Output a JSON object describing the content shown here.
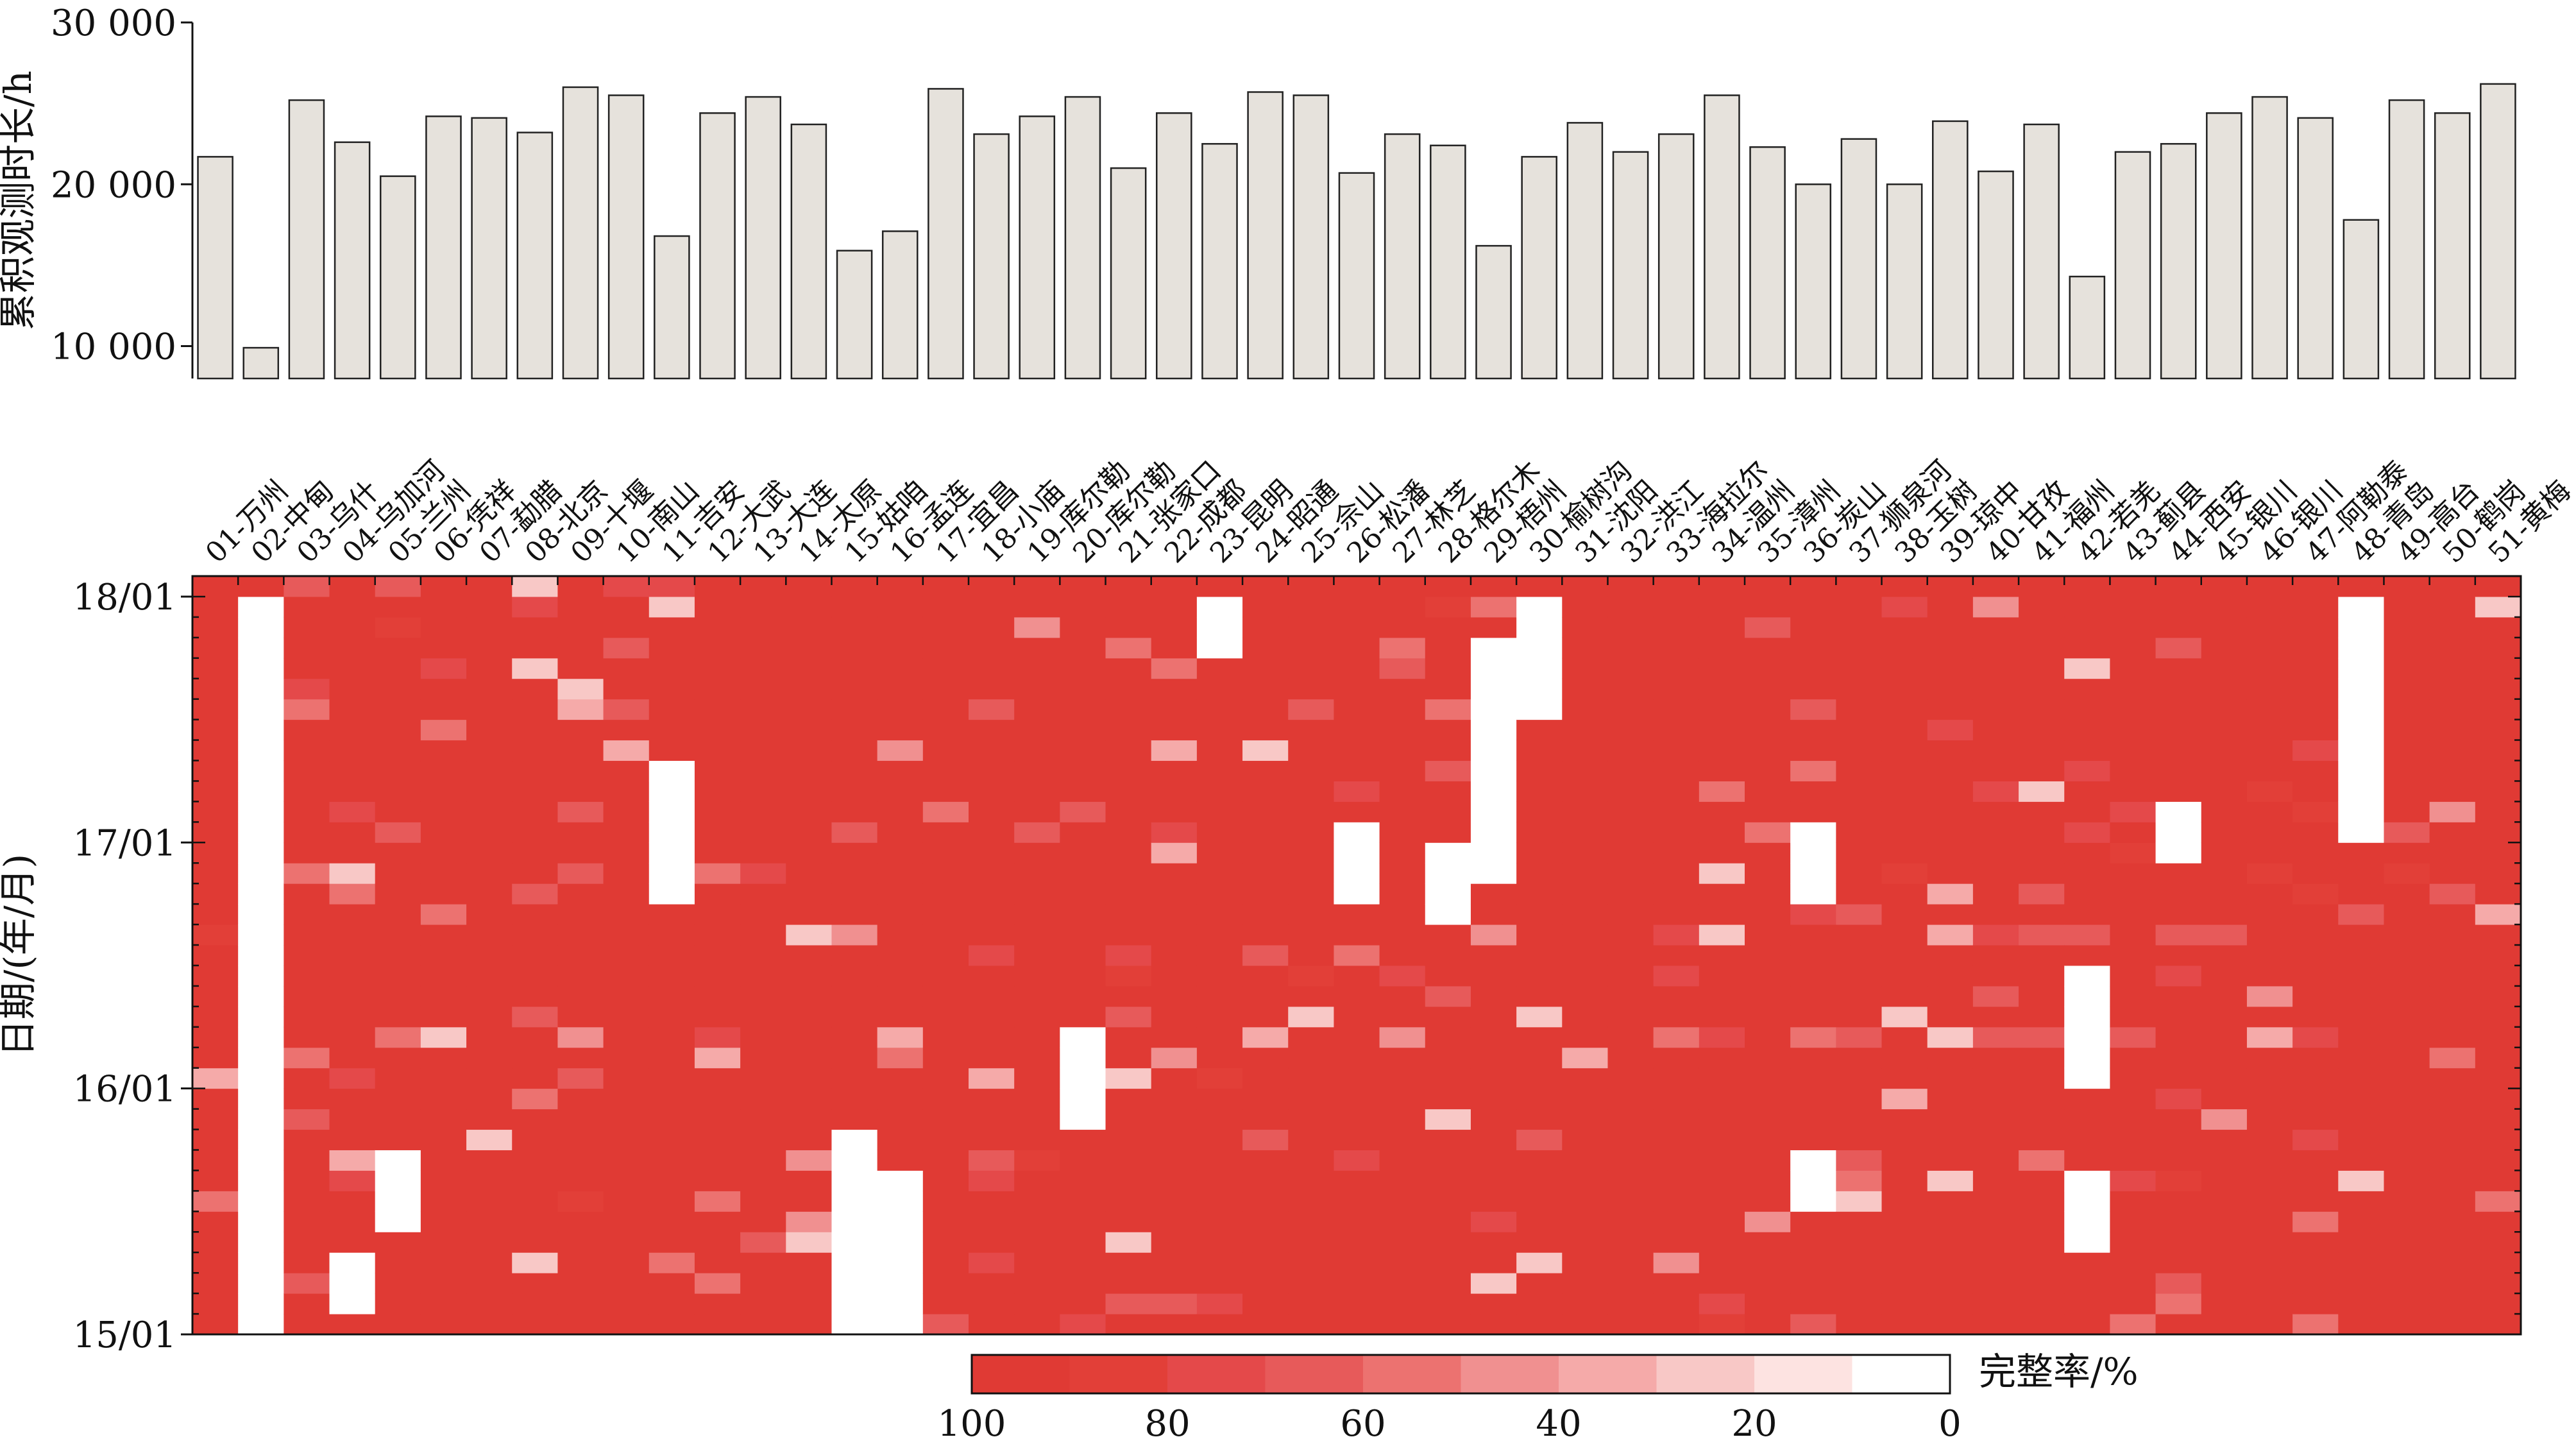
{
  "chart_data": [
    {
      "type": "bar",
      "ylabel": "累积观测时长/h",
      "ylim": [
        8000,
        30000
      ],
      "yticks": [
        10000,
        20000,
        30000
      ],
      "ytick_labels": [
        "10 000",
        "20 000",
        "30 000"
      ],
      "categories": [
        "01-万州",
        "02-中甸",
        "03-乌什",
        "04-乌加河",
        "05-兰州",
        "06-凭祥",
        "07-勐腊",
        "08-北京",
        "09-十堰",
        "10-南山",
        "11-吉安",
        "12-大武",
        "13-大连",
        "14-太原",
        "15-姑咱",
        "16-孟连",
        "17-宜昌",
        "18-小庙",
        "19-库尔勒",
        "20-库尔勒",
        "21-张家口",
        "22-成都",
        "23-昆明",
        "24-昭通",
        "25-佘山",
        "26-松潘",
        "27-林芝",
        "28-格尔木",
        "29-梧州",
        "30-榆树沟",
        "31-沈阳",
        "32-洪江",
        "33-海拉尔",
        "34-温州",
        "35-漳州",
        "36-炭山",
        "37-狮泉河",
        "38-玉树",
        "39-琼中",
        "40-甘孜",
        "41-福州",
        "42-若羌",
        "43-蓟县",
        "44-西安",
        "45-银川",
        "46-银川",
        "47-阿勒泰",
        "48-青岛",
        "49-高台",
        "50-鹤岗",
        "51-黄梅"
      ],
      "values": [
        21700,
        9900,
        25200,
        22600,
        20500,
        24200,
        24100,
        23200,
        26000,
        25500,
        16800,
        24400,
        25400,
        23700,
        15900,
        17100,
        25900,
        23100,
        24200,
        25400,
        21000,
        24400,
        22500,
        25700,
        25500,
        20700,
        23100,
        22400,
        16200,
        21700,
        23800,
        22000,
        23100,
        25500,
        22300,
        20000,
        22800,
        20000,
        23900,
        20800,
        23700,
        14300,
        22000,
        22500,
        24400,
        25400,
        24100,
        17800,
        25200,
        24400,
        26200
      ]
    },
    {
      "type": "heatmap",
      "ylabel": "日期/(年/月)",
      "yticks": [
        "15/01",
        "16/01",
        "17/01",
        "18/01"
      ],
      "colorbar": {
        "label": "完整率/%",
        "ticks": [
          100,
          80,
          60,
          40,
          20,
          0
        ],
        "bins": [
          "#e03a34",
          "#e23f38",
          "#e4494a",
          "#e75a5a",
          "#ec7270",
          "#f09090",
          "#f5aaa9",
          "#f8c8c6",
          "#fde3e1",
          "#ffffff"
        ]
      },
      "months": 37,
      "start_month": "15/01",
      "end_month": "18/01",
      "base_value": 95,
      "gaps": [
        {
          "station": "02-中甸",
          "from": "15/01",
          "to": "16/01",
          "completeness": 0
        },
        {
          "station": "02-中甸",
          "from": "16/01",
          "to": "18/01",
          "completeness": 0
        },
        {
          "station": "04-乌加河",
          "from": "15/02",
          "to": "15/05",
          "completeness": 0
        },
        {
          "station": "05-兰州",
          "from": "15/06",
          "to": "15/10",
          "completeness": 0
        },
        {
          "station": "11-吉安",
          "from": "16/10",
          "to": "17/05",
          "completeness": 0
        },
        {
          "station": "15-姑咱",
          "from": "15/01",
          "to": "15/11",
          "completeness": 0
        },
        {
          "station": "16-孟连",
          "from": "15/01",
          "to": "15/09",
          "completeness": 0
        },
        {
          "station": "20-库尔勒",
          "from": "15/11",
          "to": "16/04",
          "completeness": 0
        },
        {
          "station": "23-昆明",
          "from": "17/10",
          "to": "18/01",
          "completeness": 0
        },
        {
          "station": "26-松潘",
          "from": "16/10",
          "to": "17/02",
          "completeness": 0
        },
        {
          "station": "28-格尔木",
          "from": "16/09",
          "to": "17/01",
          "completeness": 0
        },
        {
          "station": "29-梧州",
          "from": "16/11",
          "to": "17/11",
          "completeness": 0
        },
        {
          "station": "30-榆树沟",
          "from": "17/07",
          "to": "18/01",
          "completeness": 0
        },
        {
          "station": "36-炭山",
          "from": "16/10",
          "to": "17/02",
          "completeness": 0
        },
        {
          "station": "36-炭山",
          "from": "15/07",
          "to": "15/10",
          "completeness": 0
        },
        {
          "station": "42-若羌",
          "from": "15/05",
          "to": "15/09",
          "completeness": 0
        },
        {
          "station": "42-若羌",
          "from": "16/01",
          "to": "16/07",
          "completeness": 0
        },
        {
          "station": "44-西安",
          "from": "16/12",
          "to": "17/03",
          "completeness": 0
        },
        {
          "station": "48-青岛",
          "from": "17/01",
          "to": "18/01",
          "completeness": 0
        }
      ]
    }
  ]
}
